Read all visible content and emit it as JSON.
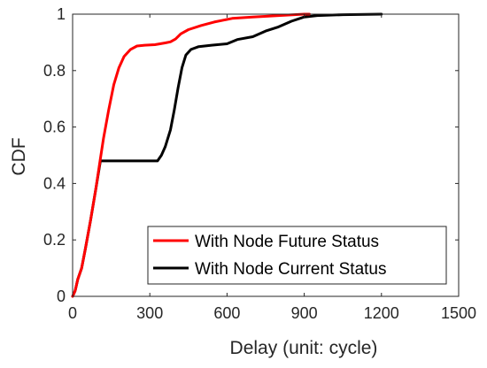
{
  "chart_data": {
    "type": "line",
    "xlabel": "Delay (unit: cycle)",
    "ylabel": "CDF",
    "xlim": [
      0,
      1500
    ],
    "ylim": [
      0,
      1
    ],
    "xticks": [
      0,
      300,
      600,
      900,
      1200,
      1500
    ],
    "xtick_labels": [
      "0",
      "300",
      "600",
      "900",
      "1200",
      "1500"
    ],
    "yticks": [
      0,
      0.2,
      0.4,
      0.6,
      0.8,
      1
    ],
    "ytick_labels": [
      "0",
      "0.2",
      "0.4",
      "0.6",
      "0.8",
      "1"
    ],
    "grid": false,
    "legend_position": "bottom-right",
    "series": [
      {
        "name": "With Node Future Status",
        "color": "#ff0000",
        "points": [
          [
            0,
            0
          ],
          [
            10,
            0.02
          ],
          [
            20,
            0.06
          ],
          [
            35,
            0.1
          ],
          [
            50,
            0.17
          ],
          [
            70,
            0.27
          ],
          [
            90,
            0.38
          ],
          [
            105,
            0.47
          ],
          [
            120,
            0.56
          ],
          [
            140,
            0.66
          ],
          [
            160,
            0.75
          ],
          [
            180,
            0.81
          ],
          [
            200,
            0.85
          ],
          [
            225,
            0.875
          ],
          [
            250,
            0.887
          ],
          [
            280,
            0.89
          ],
          [
            320,
            0.892
          ],
          [
            360,
            0.898
          ],
          [
            380,
            0.902
          ],
          [
            400,
            0.912
          ],
          [
            420,
            0.93
          ],
          [
            450,
            0.945
          ],
          [
            500,
            0.96
          ],
          [
            550,
            0.972
          ],
          [
            620,
            0.985
          ],
          [
            700,
            0.99
          ],
          [
            800,
            0.995
          ],
          [
            900,
            1.0
          ],
          [
            920,
            1.0
          ]
        ]
      },
      {
        "name": "With Node Current Status",
        "color": "#000000",
        "points": [
          [
            0,
            0
          ],
          [
            10,
            0.02
          ],
          [
            20,
            0.06
          ],
          [
            35,
            0.1
          ],
          [
            50,
            0.17
          ],
          [
            70,
            0.27
          ],
          [
            90,
            0.38
          ],
          [
            108,
            0.48
          ],
          [
            200,
            0.48
          ],
          [
            300,
            0.48
          ],
          [
            330,
            0.48
          ],
          [
            345,
            0.5
          ],
          [
            360,
            0.53
          ],
          [
            380,
            0.59
          ],
          [
            395,
            0.66
          ],
          [
            410,
            0.74
          ],
          [
            425,
            0.81
          ],
          [
            440,
            0.855
          ],
          [
            460,
            0.875
          ],
          [
            490,
            0.885
          ],
          [
            540,
            0.89
          ],
          [
            600,
            0.895
          ],
          [
            640,
            0.91
          ],
          [
            700,
            0.92
          ],
          [
            750,
            0.94
          ],
          [
            800,
            0.955
          ],
          [
            850,
            0.975
          ],
          [
            900,
            0.99
          ],
          [
            950,
            0.995
          ],
          [
            1050,
            0.998
          ],
          [
            1200,
            1.0
          ]
        ]
      }
    ]
  }
}
